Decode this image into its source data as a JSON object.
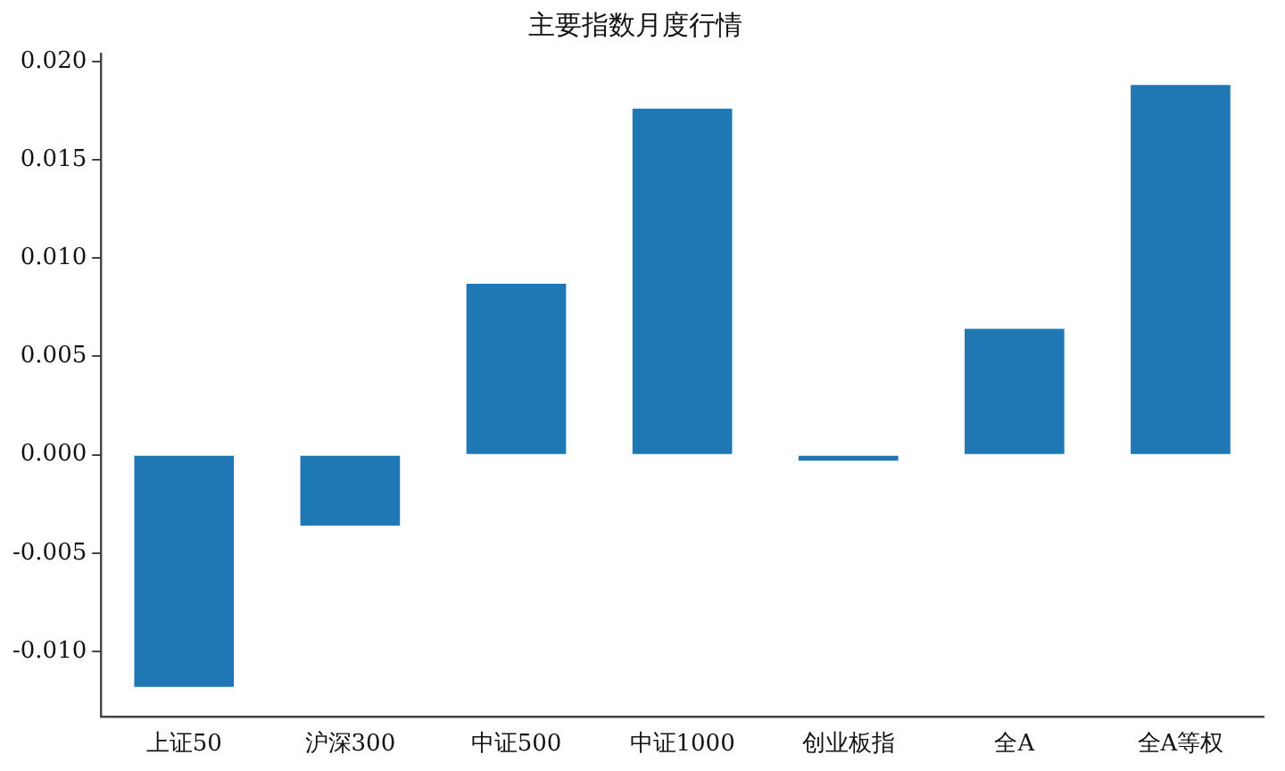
{
  "chart_data": {
    "type": "bar",
    "title": "主要指数月度行情",
    "categories": [
      "上证50",
      "沪深300",
      "中证500",
      "中证1000",
      "创业板指",
      "全A",
      "全A等权"
    ],
    "values": [
      -0.0118,
      -0.0036,
      0.0087,
      0.0176,
      -0.0003,
      0.0064,
      0.0188
    ],
    "color": "#1f77b4",
    "ylim": [
      -0.0133,
      0.0204
    ],
    "yticks": [
      {
        "value": -0.01,
        "label": "-0.010"
      },
      {
        "value": -0.005,
        "label": "-0.005"
      },
      {
        "value": 0,
        "label": "0.000"
      },
      {
        "value": 0.005,
        "label": "0.005"
      },
      {
        "value": 0.01,
        "label": "0.010"
      },
      {
        "value": 0.015,
        "label": "0.015"
      },
      {
        "value": 0.02,
        "label": "0.020"
      }
    ],
    "grid": false,
    "legend": false
  }
}
